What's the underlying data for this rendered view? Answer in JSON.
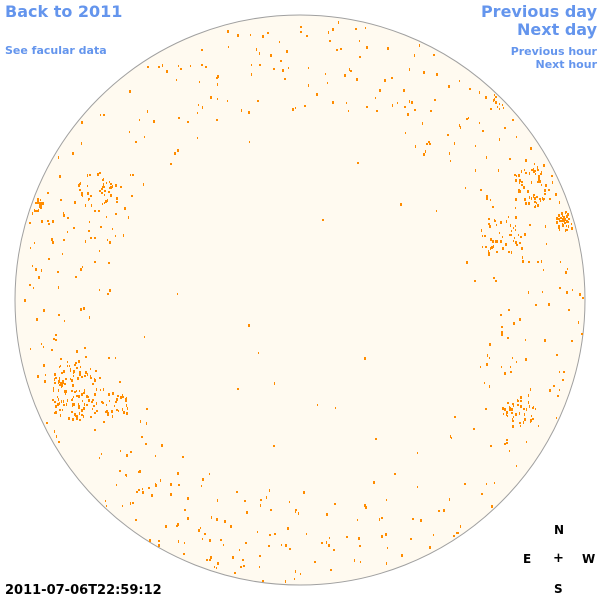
{
  "nav": {
    "back_label": "Back to 2011",
    "facular_label": "See facular data",
    "previous_day_label": "Previous day",
    "next_day_label": "Next day",
    "previous_hour_label": "Previous hour",
    "next_hour_label": "Next hour"
  },
  "timestamp": "2011-07-06T22:59:12",
  "compass": {
    "north": "N",
    "south": "S",
    "east": "E",
    "west": "W",
    "center": "+"
  },
  "colors": {
    "link": "#6495ed",
    "disk_fill": "#fffaf0",
    "disk_outline": "#a0a0a0",
    "facula": "#ff8c00"
  }
}
